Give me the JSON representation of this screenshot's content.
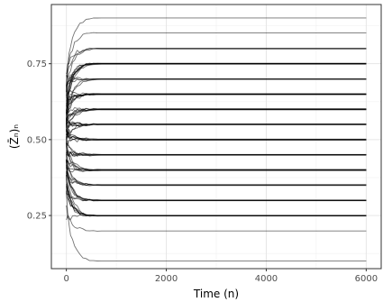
{
  "chart_data": {
    "type": "line",
    "xlabel": "Time (n)",
    "ylabel": "(Z̄ₙ)ₙ",
    "xlim": [
      -300,
      6300
    ],
    "ylim": [
      0.075,
      0.945
    ],
    "x_ticks": [
      0,
      2000,
      4000,
      6000
    ],
    "x_tick_labels": [
      "0",
      "2000",
      "4000",
      "6000"
    ],
    "y_ticks": [
      0.25,
      0.5,
      0.75
    ],
    "y_tick_labels": [
      "0.25",
      "0.50",
      "0.75"
    ],
    "x_start": 0,
    "x_end": 6000,
    "grid": true,
    "legend": "none",
    "line_color": "#000000",
    "final_values": [
      0.1,
      0.2,
      0.25,
      0.3,
      0.35,
      0.4,
      0.45,
      0.5,
      0.55,
      0.6,
      0.65,
      0.7,
      0.75,
      0.8,
      0.85,
      0.9
    ],
    "lines_per_value": [
      1,
      1,
      8,
      6,
      5,
      7,
      6,
      7,
      8,
      7,
      9,
      5,
      8,
      3,
      1,
      1
    ]
  }
}
